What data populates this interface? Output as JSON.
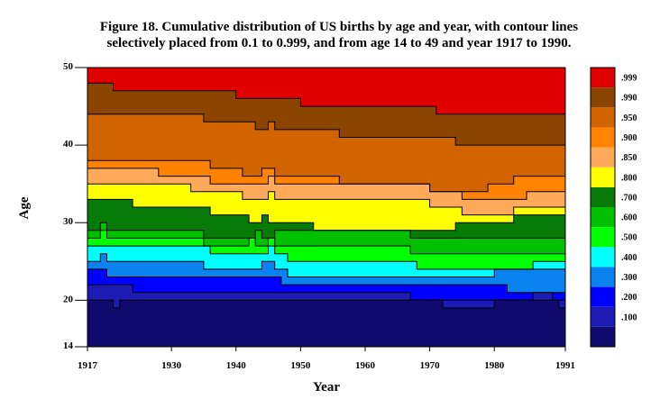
{
  "chart_data": {
    "type": "area",
    "title": "Figure 18. Cumulative distribution of US births by age and year, with contour lines",
    "subtitle": "selectively placed from 0.1 to 0.999, and from age 14 to 49 and year 1917 to 1990.",
    "xlabel": "Year",
    "ylabel": "Age",
    "xlim": [
      1917,
      1991
    ],
    "ylim": [
      14,
      50
    ],
    "x_ticks": [
      1917,
      1930,
      1940,
      1950,
      1960,
      1970,
      1980,
      1991
    ],
    "y_ticks": [
      14,
      20,
      30,
      40,
      50
    ],
    "legend": [
      {
        "label": "",
        "color": "#100a6e"
      },
      {
        "label": ".100",
        "color": "#1c1cb4"
      },
      {
        "label": ".200",
        "color": "#0000ff"
      },
      {
        "label": ".300",
        "color": "#0a82f0"
      },
      {
        "label": ".400",
        "color": "#00ffff"
      },
      {
        "label": ".500",
        "color": "#00ff00"
      },
      {
        "label": ".600",
        "color": "#00c000"
      },
      {
        "label": ".700",
        "color": "#087a08"
      },
      {
        "label": ".800",
        "color": "#ffff00"
      },
      {
        "label": ".850",
        "color": "#ffaa5a"
      },
      {
        "label": ".900",
        "color": "#ff8200"
      },
      {
        "label": ".950",
        "color": "#d26400"
      },
      {
        "label": ".990",
        "color": "#8b4500"
      },
      {
        "label": ".999",
        "color": "#e00000"
      }
    ],
    "contours": [
      {
        "level": ".100",
        "points": [
          [
            1917,
            20
          ],
          [
            1921,
            20
          ],
          [
            1921,
            19
          ],
          [
            1922,
            19
          ],
          [
            1922,
            20
          ],
          [
            1933,
            20
          ],
          [
            1972,
            20
          ],
          [
            1972,
            19
          ],
          [
            1980,
            19
          ],
          [
            1980,
            20
          ],
          [
            1990,
            20
          ],
          [
            1990,
            19
          ],
          [
            1991,
            19
          ]
        ]
      },
      {
        "level": ".200",
        "points": [
          [
            1917,
            22
          ],
          [
            1924,
            22
          ],
          [
            1924,
            21
          ],
          [
            1950,
            21
          ],
          [
            1967,
            21
          ],
          [
            1967,
            20
          ],
          [
            1986,
            20
          ],
          [
            1986,
            21
          ],
          [
            1989,
            21
          ],
          [
            1989,
            20
          ],
          [
            1991,
            20
          ]
        ]
      },
      {
        "level": ".300",
        "points": [
          [
            1917,
            24
          ],
          [
            1920,
            24
          ],
          [
            1920,
            23
          ],
          [
            1947,
            23
          ],
          [
            1947,
            22
          ],
          [
            1982,
            22
          ],
          [
            1982,
            21
          ],
          [
            1991,
            21
          ]
        ]
      },
      {
        "level": ".400",
        "points": [
          [
            1917,
            25
          ],
          [
            1919,
            25
          ],
          [
            1919,
            26
          ],
          [
            1920,
            26
          ],
          [
            1920,
            25
          ],
          [
            1935,
            25
          ],
          [
            1935,
            24
          ],
          [
            1944,
            24
          ],
          [
            1944,
            25
          ],
          [
            1946,
            25
          ],
          [
            1946,
            24
          ],
          [
            1948,
            24
          ],
          [
            1948,
            23
          ],
          [
            1980,
            23
          ],
          [
            1980,
            24
          ],
          [
            1991,
            24
          ]
        ]
      },
      {
        "level": ".500",
        "points": [
          [
            1917,
            27
          ],
          [
            1936,
            27
          ],
          [
            1936,
            26
          ],
          [
            1945,
            26
          ],
          [
            1945,
            27
          ],
          [
            1946,
            27
          ],
          [
            1946,
            26
          ],
          [
            1948,
            26
          ],
          [
            1948,
            25
          ],
          [
            1956,
            25
          ],
          [
            1968,
            25
          ],
          [
            1968,
            24
          ],
          [
            1986,
            24
          ],
          [
            1986,
            25
          ],
          [
            1991,
            25
          ]
        ]
      },
      {
        "level": ".600",
        "points": [
          [
            1917,
            28
          ],
          [
            1919,
            28
          ],
          [
            1919,
            29
          ],
          [
            1920,
            29
          ],
          [
            1920,
            28
          ],
          [
            1935,
            28
          ],
          [
            1935,
            27
          ],
          [
            1942,
            27
          ],
          [
            1942,
            28
          ],
          [
            1943,
            28
          ],
          [
            1943,
            27
          ],
          [
            1945,
            27
          ],
          [
            1945,
            28
          ],
          [
            1946,
            28
          ],
          [
            1946,
            27
          ],
          [
            1967,
            27
          ],
          [
            1967,
            26
          ],
          [
            1991,
            26
          ]
        ]
      },
      {
        "level": ".700",
        "points": [
          [
            1917,
            29
          ],
          [
            1919,
            29
          ],
          [
            1919,
            30
          ],
          [
            1920,
            30
          ],
          [
            1920,
            29
          ],
          [
            1935,
            29
          ],
          [
            1935,
            28
          ],
          [
            1943,
            28
          ],
          [
            1943,
            29
          ],
          [
            1944,
            29
          ],
          [
            1944,
            28
          ],
          [
            1946,
            28
          ],
          [
            1946,
            29
          ],
          [
            1947,
            29
          ],
          [
            1967,
            29
          ],
          [
            1967,
            28
          ],
          [
            1991,
            28
          ]
        ]
      },
      {
        "level": ".800",
        "points": [
          [
            1917,
            33
          ],
          [
            1924,
            33
          ],
          [
            1924,
            32
          ],
          [
            1936,
            32
          ],
          [
            1936,
            31
          ],
          [
            1942,
            31
          ],
          [
            1942,
            30
          ],
          [
            1944,
            30
          ],
          [
            1944,
            31
          ],
          [
            1945,
            31
          ],
          [
            1945,
            30
          ],
          [
            1948,
            30
          ],
          [
            1952,
            30
          ],
          [
            1952,
            29
          ],
          [
            1974,
            29
          ],
          [
            1974,
            30
          ],
          [
            1983,
            30
          ],
          [
            1983,
            31
          ],
          [
            1991,
            31
          ]
        ]
      },
      {
        "level": ".850",
        "points": [
          [
            1917,
            35
          ],
          [
            1933,
            35
          ],
          [
            1933,
            34
          ],
          [
            1941,
            34
          ],
          [
            1941,
            33
          ],
          [
            1945,
            33
          ],
          [
            1945,
            34
          ],
          [
            1946,
            34
          ],
          [
            1946,
            33
          ],
          [
            1948,
            33
          ],
          [
            1970,
            33
          ],
          [
            1970,
            32
          ],
          [
            1975,
            32
          ],
          [
            1975,
            31
          ],
          [
            1983,
            31
          ],
          [
            1983,
            32
          ],
          [
            1991,
            32
          ]
        ]
      },
      {
        "level": ".900",
        "points": [
          [
            1917,
            37
          ],
          [
            1928,
            37
          ],
          [
            1928,
            36
          ],
          [
            1936,
            36
          ],
          [
            1936,
            35
          ],
          [
            1945,
            35
          ],
          [
            1945,
            36
          ],
          [
            1946,
            36
          ],
          [
            1946,
            35
          ],
          [
            1948,
            35
          ],
          [
            1970,
            35
          ],
          [
            1970,
            34
          ],
          [
            1975,
            34
          ],
          [
            1975,
            33
          ],
          [
            1985,
            33
          ],
          [
            1985,
            34
          ],
          [
            1991,
            34
          ]
        ]
      },
      {
        "level": ".950",
        "points": [
          [
            1917,
            38
          ],
          [
            1936,
            38
          ],
          [
            1936,
            37
          ],
          [
            1941,
            37
          ],
          [
            1941,
            36
          ],
          [
            1944,
            36
          ],
          [
            1944,
            37
          ],
          [
            1946,
            37
          ],
          [
            1946,
            36
          ],
          [
            1956,
            36
          ],
          [
            1956,
            35
          ],
          [
            1970,
            35
          ],
          [
            1970,
            34
          ],
          [
            1975,
            34
          ],
          [
            1979,
            34
          ],
          [
            1979,
            35
          ],
          [
            1983,
            35
          ],
          [
            1983,
            36
          ],
          [
            1991,
            36
          ]
        ]
      },
      {
        "level": ".990",
        "points": [
          [
            1917,
            44
          ],
          [
            1935,
            44
          ],
          [
            1935,
            43
          ],
          [
            1943,
            43
          ],
          [
            1943,
            42
          ],
          [
            1945,
            42
          ],
          [
            1945,
            43
          ],
          [
            1946,
            43
          ],
          [
            1946,
            42
          ],
          [
            1956,
            42
          ],
          [
            1956,
            41
          ],
          [
            1974,
            41
          ],
          [
            1974,
            40
          ],
          [
            1991,
            40
          ]
        ]
      },
      {
        "level": ".999",
        "points": [
          [
            1917,
            48
          ],
          [
            1921,
            48
          ],
          [
            1921,
            47
          ],
          [
            1940,
            47
          ],
          [
            1940,
            46
          ],
          [
            1950,
            46
          ],
          [
            1950,
            45
          ],
          [
            1971,
            45
          ],
          [
            1971,
            44
          ],
          [
            1991,
            44
          ]
        ]
      }
    ]
  }
}
